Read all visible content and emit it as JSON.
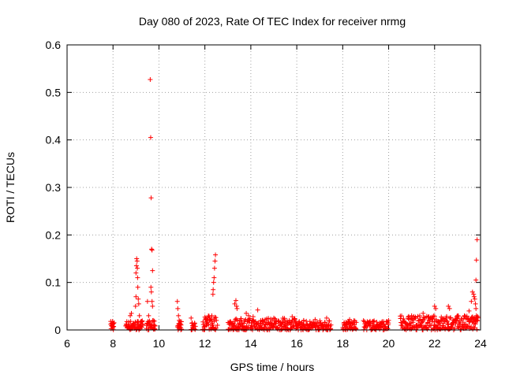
{
  "chart_data": {
    "type": "scatter",
    "title": "Day 080 of 2023, Rate Of TEC Index for receiver nrmg",
    "xlabel": "GPS time / hours",
    "ylabel": "ROTI / TECUs",
    "xlim": [
      6,
      24
    ],
    "ylim": [
      0,
      0.6
    ],
    "xticks": [
      "6",
      "8",
      "10",
      "12",
      "14",
      "16",
      "18",
      "20",
      "22",
      "24"
    ],
    "yticks": [
      "0",
      "0.1",
      "0.2",
      "0.3",
      "0.4",
      "0.5",
      "0.6"
    ],
    "grid": true,
    "marker": "plus",
    "color": "#ff0000",
    "series": [
      {
        "points": [
          [
            7.9,
            0.012
          ],
          [
            7.95,
            0.008
          ],
          [
            7.98,
            0.018
          ],
          [
            8.0,
            0.006
          ],
          [
            8.02,
            0.014
          ],
          [
            8.6,
            0.008
          ],
          [
            8.7,
            0.012
          ],
          [
            8.75,
            0.03
          ],
          [
            8.8,
            0.035
          ],
          [
            8.85,
            0.01
          ],
          [
            8.9,
            0.014
          ],
          [
            8.98,
            0.05
          ],
          [
            9.0,
            0.07
          ],
          [
            9.0,
            0.12
          ],
          [
            9.02,
            0.135
          ],
          [
            9.03,
            0.15
          ],
          [
            9.05,
            0.145
          ],
          [
            9.06,
            0.13
          ],
          [
            9.07,
            0.11
          ],
          [
            9.08,
            0.09
          ],
          [
            9.1,
            0.065
          ],
          [
            9.12,
            0.055
          ],
          [
            9.15,
            0.03
          ],
          [
            9.2,
            0.01
          ],
          [
            9.05,
            0.005
          ],
          [
            9.1,
            0.012
          ],
          [
            9.15,
            0.008
          ],
          [
            9.2,
            0.015
          ],
          [
            9.25,
            0.006
          ],
          [
            9.3,
            0.01
          ],
          [
            9.5,
            0.06
          ],
          [
            9.55,
            0.03
          ],
          [
            9.6,
            0.012
          ],
          [
            9.62,
            0.527
          ],
          [
            9.64,
            0.405
          ],
          [
            9.66,
            0.278
          ],
          [
            9.68,
            0.17
          ],
          [
            9.7,
            0.168
          ],
          [
            9.72,
            0.125
          ],
          [
            9.65,
            0.09
          ],
          [
            9.67,
            0.08
          ],
          [
            9.7,
            0.06
          ],
          [
            9.72,
            0.05
          ],
          [
            9.75,
            0.02
          ],
          [
            9.8,
            0.01
          ],
          [
            10.8,
            0.06
          ],
          [
            10.82,
            0.045
          ],
          [
            10.85,
            0.03
          ],
          [
            10.88,
            0.02
          ],
          [
            10.9,
            0.01
          ],
          [
            10.95,
            0.005
          ],
          [
            11.4,
            0.025
          ],
          [
            11.45,
            0.015
          ],
          [
            11.5,
            0.008
          ],
          [
            12.0,
            0.008
          ],
          [
            12.1,
            0.012
          ],
          [
            12.2,
            0.02
          ],
          [
            12.3,
            0.03
          ],
          [
            12.35,
            0.075
          ],
          [
            12.36,
            0.085
          ],
          [
            12.38,
            0.1
          ],
          [
            12.4,
            0.11
          ],
          [
            12.42,
            0.13
          ],
          [
            12.44,
            0.145
          ],
          [
            12.46,
            0.158
          ],
          [
            12.5,
            0.02
          ],
          [
            12.55,
            0.01
          ],
          [
            13.3,
            0.055
          ],
          [
            13.35,
            0.062
          ],
          [
            13.38,
            0.05
          ],
          [
            13.4,
            0.045
          ],
          [
            13.8,
            0.035
          ],
          [
            13.9,
            0.03
          ],
          [
            14.3,
            0.042
          ],
          [
            14.1,
            0.028
          ],
          [
            14.5,
            0.02
          ],
          [
            15.0,
            0.025
          ],
          [
            15.5,
            0.018
          ],
          [
            15.8,
            0.028
          ],
          [
            16.3,
            0.02
          ],
          [
            16.8,
            0.022
          ],
          [
            17.3,
            0.025
          ],
          [
            18.3,
            0.022
          ],
          [
            19.3,
            0.018
          ],
          [
            20.0,
            0.02
          ],
          [
            21.0,
            0.03
          ],
          [
            21.5,
            0.035
          ],
          [
            22.0,
            0.05
          ],
          [
            22.05,
            0.045
          ],
          [
            22.6,
            0.05
          ],
          [
            22.65,
            0.045
          ],
          [
            23.0,
            0.03
          ],
          [
            23.3,
            0.03
          ],
          [
            23.5,
            0.04
          ],
          [
            23.6,
            0.06
          ],
          [
            23.65,
            0.08
          ],
          [
            23.7,
            0.075
          ],
          [
            23.72,
            0.07
          ],
          [
            23.75,
            0.065
          ],
          [
            23.78,
            0.055
          ],
          [
            23.8,
            0.045
          ],
          [
            23.82,
            0.03
          ],
          [
            23.85,
            0.02
          ],
          [
            23.8,
            0.105
          ],
          [
            23.82,
            0.147
          ],
          [
            23.85,
            0.19
          ]
        ],
        "dense_ranges": [
          [
            7.9,
            8.05,
            0,
            0.02
          ],
          [
            8.55,
            9.3,
            0,
            0.02
          ],
          [
            9.45,
            9.85,
            0,
            0.02
          ],
          [
            10.8,
            11.0,
            0,
            0.02
          ],
          [
            11.4,
            11.6,
            0,
            0.015
          ],
          [
            11.9,
            12.5,
            0,
            0.03
          ],
          [
            13.0,
            16.0,
            0,
            0.025
          ],
          [
            16.0,
            17.5,
            0,
            0.02
          ],
          [
            18.0,
            18.6,
            0,
            0.02
          ],
          [
            18.9,
            20.0,
            0,
            0.02
          ],
          [
            20.5,
            23.9,
            0,
            0.03
          ]
        ]
      }
    ]
  }
}
